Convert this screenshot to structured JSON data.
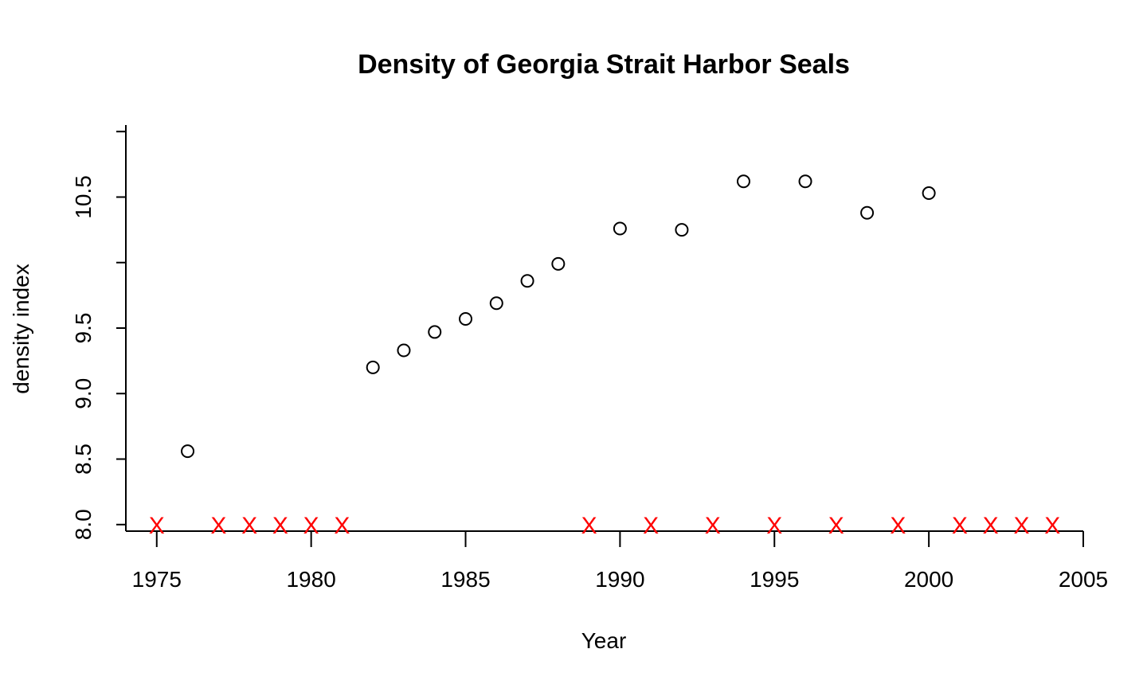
{
  "chart_data": {
    "type": "scatter",
    "title": "Density of Georgia Strait Harbor Seals",
    "xlabel": "Year",
    "ylabel": "density index",
    "xlim": [
      1974,
      2005
    ],
    "ylim": [
      7.95,
      11.05
    ],
    "x_ticks": [
      1975,
      1980,
      1985,
      1990,
      1995,
      2000,
      2005
    ],
    "y_ticks": [
      8.0,
      8.5,
      9.0,
      9.5,
      10.0,
      10.5,
      11.0
    ],
    "y_tick_labels": [
      "8.0",
      "8.5",
      "9.0",
      "9.5",
      "",
      "10.5",
      ""
    ],
    "grid": false,
    "points": {
      "marker": "open-circle",
      "color": "#000000",
      "x": [
        1976,
        1982,
        1983,
        1984,
        1985,
        1986,
        1987,
        1988,
        1990,
        1992,
        1994,
        1996,
        1998,
        2000
      ],
      "y": [
        8.56,
        9.2,
        9.33,
        9.47,
        9.57,
        9.69,
        9.86,
        9.99,
        10.26,
        10.25,
        10.62,
        10.62,
        10.38,
        10.53
      ]
    },
    "missing": {
      "marker": "X",
      "color": "#ff0000",
      "y": 8.0,
      "x": [
        1975,
        1977,
        1978,
        1979,
        1980,
        1981,
        1989,
        1991,
        1993,
        1995,
        1997,
        1999,
        2001,
        2002,
        2003,
        2004
      ]
    }
  }
}
